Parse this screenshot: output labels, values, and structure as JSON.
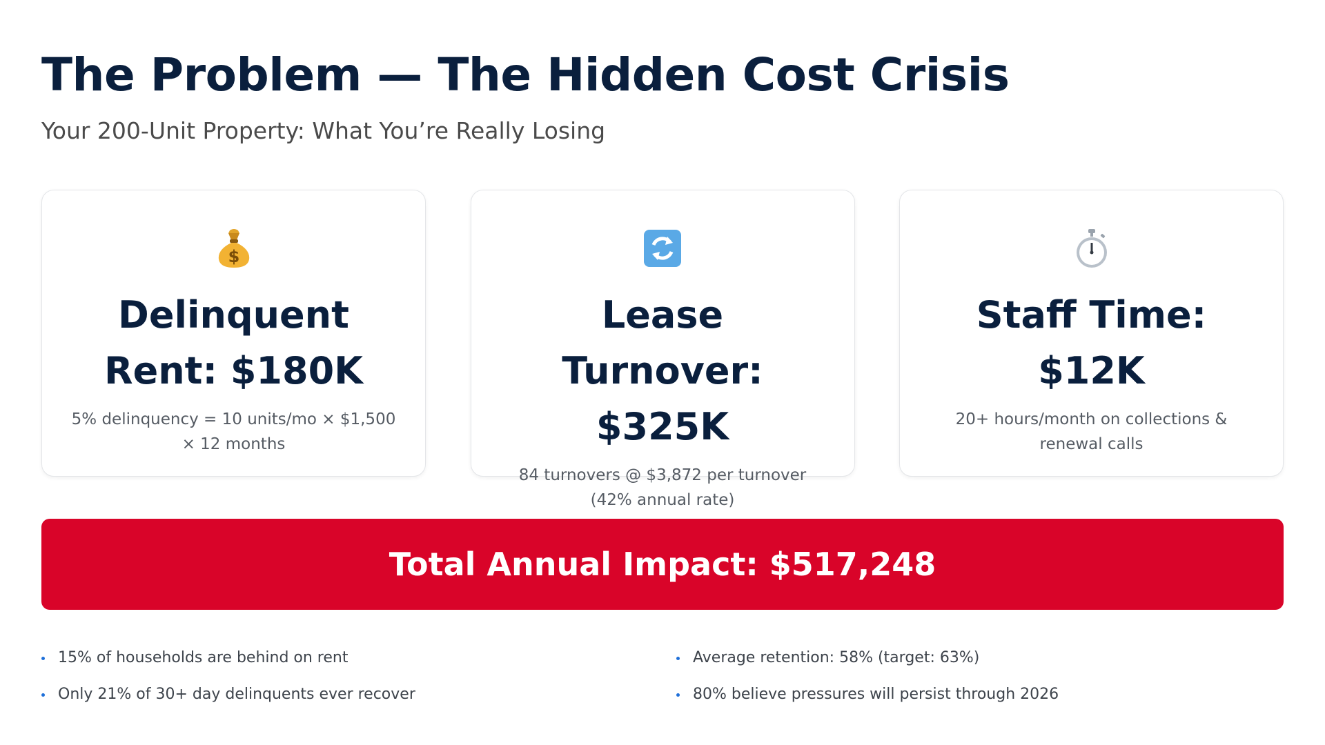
{
  "header": {
    "title": "The Problem — The Hidden Cost Crisis",
    "subtitle": "Your 200-Unit Property: What You’re Really Losing"
  },
  "cards": [
    {
      "icon": "money-bag-icon",
      "heading": "Delinquent Rent: $180K",
      "description": "5% delinquency = 10 units/mo × $1,500 × 12 months"
    },
    {
      "icon": "arrows-cycle-icon",
      "heading": "Lease Turnover: $325K",
      "description": "84 turnovers @ $3,872 per turnover (42% annual rate)"
    },
    {
      "icon": "stopwatch-icon",
      "heading": "Staff Time: $12K",
      "description": "20+ hours/month on collections & renewal calls"
    }
  ],
  "banner": {
    "text": "Total Annual Impact: $517,248",
    "color": "#d90429"
  },
  "bullets": {
    "left": [
      "15% of households are behind on rent",
      "Only 21% of 30+ day delinquents ever recover"
    ],
    "right": [
      "Average retention: 58% (target: 63%)",
      "80% believe pressures will persist through 2026"
    ]
  },
  "colors": {
    "heading": "#0a1f3d",
    "bullet_dot": "#1e6fd9"
  }
}
